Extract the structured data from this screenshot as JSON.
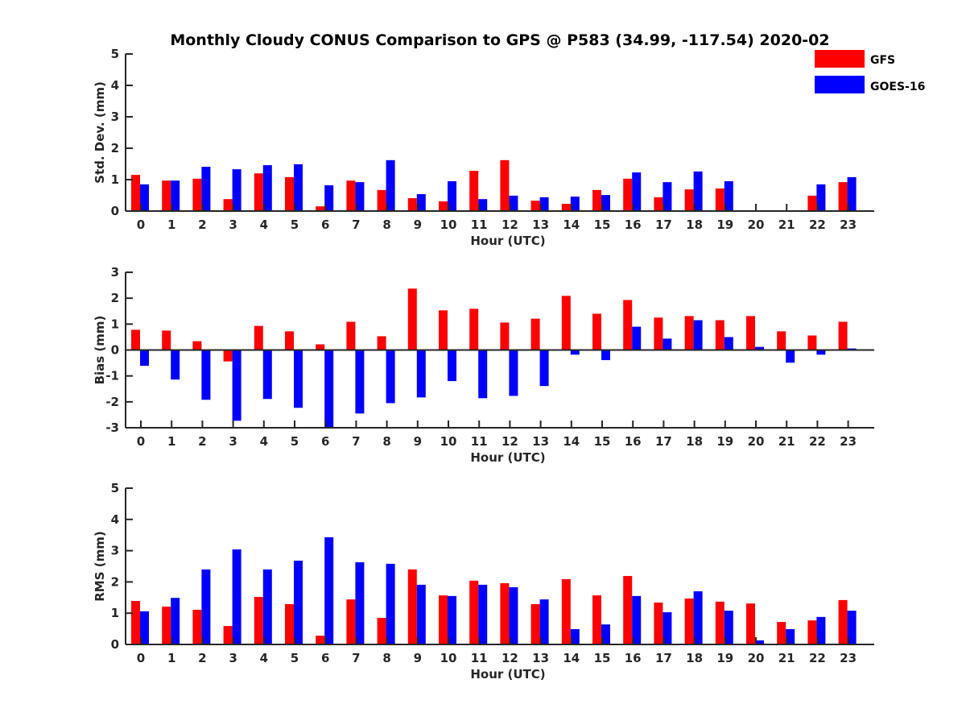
{
  "chart_data": {
    "type": "bar",
    "title": "Monthly Cloudy CONUS Comparison to GPS @ P583 (34.99, -117.54) 2020-02",
    "legend": {
      "placement": "top-right",
      "entries": [
        {
          "name": "GFS",
          "color": "#ff0000"
        },
        {
          "name": "GOES-16",
          "color": "#0000ff"
        }
      ]
    },
    "categories": [
      "0",
      "1",
      "2",
      "3",
      "4",
      "5",
      "6",
      "7",
      "8",
      "9",
      "10",
      "11",
      "12",
      "13",
      "14",
      "15",
      "16",
      "17",
      "18",
      "19",
      "20",
      "21",
      "22",
      "23"
    ],
    "panels": [
      {
        "id": "stddev",
        "xlabel": "Hour (UTC)",
        "ylabel": "Std. Dev. (mm)",
        "ylim": [
          0,
          5
        ],
        "yticks": [
          0,
          1,
          2,
          3,
          4,
          5
        ],
        "grid": false,
        "series": [
          {
            "name": "GFS",
            "color": "#ff0000",
            "values": [
              1.15,
              0.97,
              1.03,
              0.38,
              1.2,
              1.08,
              0.15,
              0.97,
              0.67,
              0.41,
              0.31,
              1.28,
              1.62,
              0.33,
              0.23,
              0.67,
              1.03,
              0.44,
              0.69,
              0.72,
              null,
              null,
              0.49,
              0.92
            ]
          },
          {
            "name": "GOES-16",
            "color": "#0000ff",
            "values": [
              0.85,
              0.97,
              1.41,
              1.33,
              1.46,
              1.49,
              0.82,
              0.92,
              1.62,
              0.54,
              0.95,
              0.38,
              0.49,
              0.44,
              0.46,
              0.51,
              1.23,
              0.92,
              1.26,
              0.95,
              null,
              null,
              0.85,
              1.08
            ]
          }
        ]
      },
      {
        "id": "bias",
        "xlabel": "Hour (UTC)",
        "ylabel": "Bias (mm)",
        "ylim": [
          -3,
          3
        ],
        "yticks": [
          -3,
          -2,
          -1,
          0,
          1,
          2,
          3
        ],
        "grid": false,
        "series": [
          {
            "name": "GFS",
            "color": "#ff0000",
            "values": [
              0.78,
              0.75,
              0.34,
              -0.44,
              0.93,
              0.72,
              0.22,
              1.09,
              0.53,
              2.37,
              1.53,
              1.59,
              1.06,
              1.21,
              2.09,
              1.4,
              1.93,
              1.25,
              1.31,
              1.15,
              1.31,
              0.72,
              0.56,
              1.09
            ]
          },
          {
            "name": "GOES-16",
            "color": "#0000ff",
            "values": [
              -0.61,
              -1.14,
              -1.92,
              -2.73,
              -1.89,
              -2.23,
              -3.0,
              -2.45,
              -2.05,
              -1.83,
              -1.2,
              -1.86,
              -1.77,
              -1.39,
              -0.18,
              -0.39,
              0.9,
              0.44,
              1.15,
              0.5,
              0.12,
              -0.49,
              -0.18,
              0.06
            ]
          }
        ]
      },
      {
        "id": "rms",
        "xlabel": "Hour (UTC)",
        "ylabel": "RMS (mm)",
        "ylim": [
          0,
          5
        ],
        "yticks": [
          0,
          1,
          2,
          3,
          4,
          5
        ],
        "grid": false,
        "series": [
          {
            "name": "GFS",
            "color": "#ff0000",
            "values": [
              1.39,
              1.21,
              1.11,
              0.59,
              1.52,
              1.29,
              0.28,
              1.44,
              0.85,
              2.4,
              1.57,
              2.04,
              1.96,
              1.29,
              2.09,
              1.57,
              2.19,
              1.34,
              1.47,
              1.37,
              1.31,
              0.72,
              0.77,
              1.42
            ]
          },
          {
            "name": "GOES-16",
            "color": "#0000ff",
            "values": [
              1.06,
              1.49,
              2.4,
              3.04,
              2.4,
              2.68,
              3.43,
              2.63,
              2.58,
              1.91,
              1.55,
              1.91,
              1.83,
              1.44,
              0.49,
              0.64,
              1.55,
              1.03,
              1.7,
              1.08,
              0.13,
              0.49,
              0.88,
              1.08
            ]
          }
        ]
      }
    ]
  }
}
